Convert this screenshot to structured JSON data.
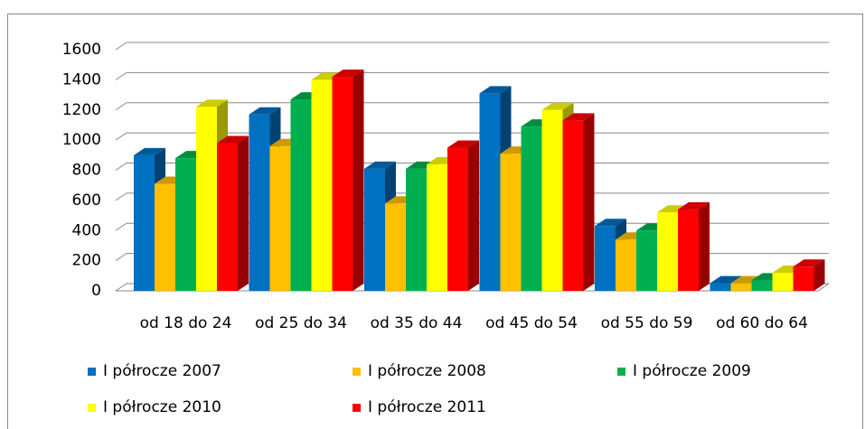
{
  "chart_data": {
    "type": "bar3d",
    "categories": [
      "od 18 do 24",
      "od 25 do 34",
      "od 35 do 44",
      "od 45 do 54",
      "od 55 do 59",
      "od 60 do 64"
    ],
    "series": [
      {
        "name": "I półrocze 2007",
        "color": "#0070c0",
        "values": [
          900,
          1170,
          810,
          1310,
          430,
          50
        ]
      },
      {
        "name": "I półrocze 2008",
        "color": "#ffc000",
        "values": [
          710,
          960,
          580,
          910,
          340,
          50
        ]
      },
      {
        "name": "I półrocze 2009",
        "color": "#00b050",
        "values": [
          880,
          1270,
          810,
          1090,
          400,
          70
        ]
      },
      {
        "name": "I półrocze 2010",
        "color": "#ffff00",
        "values": [
          1220,
          1400,
          840,
          1200,
          520,
          120
        ]
      },
      {
        "name": "I półrocze 2011",
        "color": "#ff0000",
        "values": [
          980,
          1420,
          950,
          1130,
          540,
          160
        ]
      }
    ],
    "ylim": [
      0,
      1600
    ],
    "yticks": [
      0,
      200,
      400,
      600,
      800,
      1000,
      1200,
      1400,
      1600
    ],
    "grid": true,
    "legend": "bottom"
  }
}
